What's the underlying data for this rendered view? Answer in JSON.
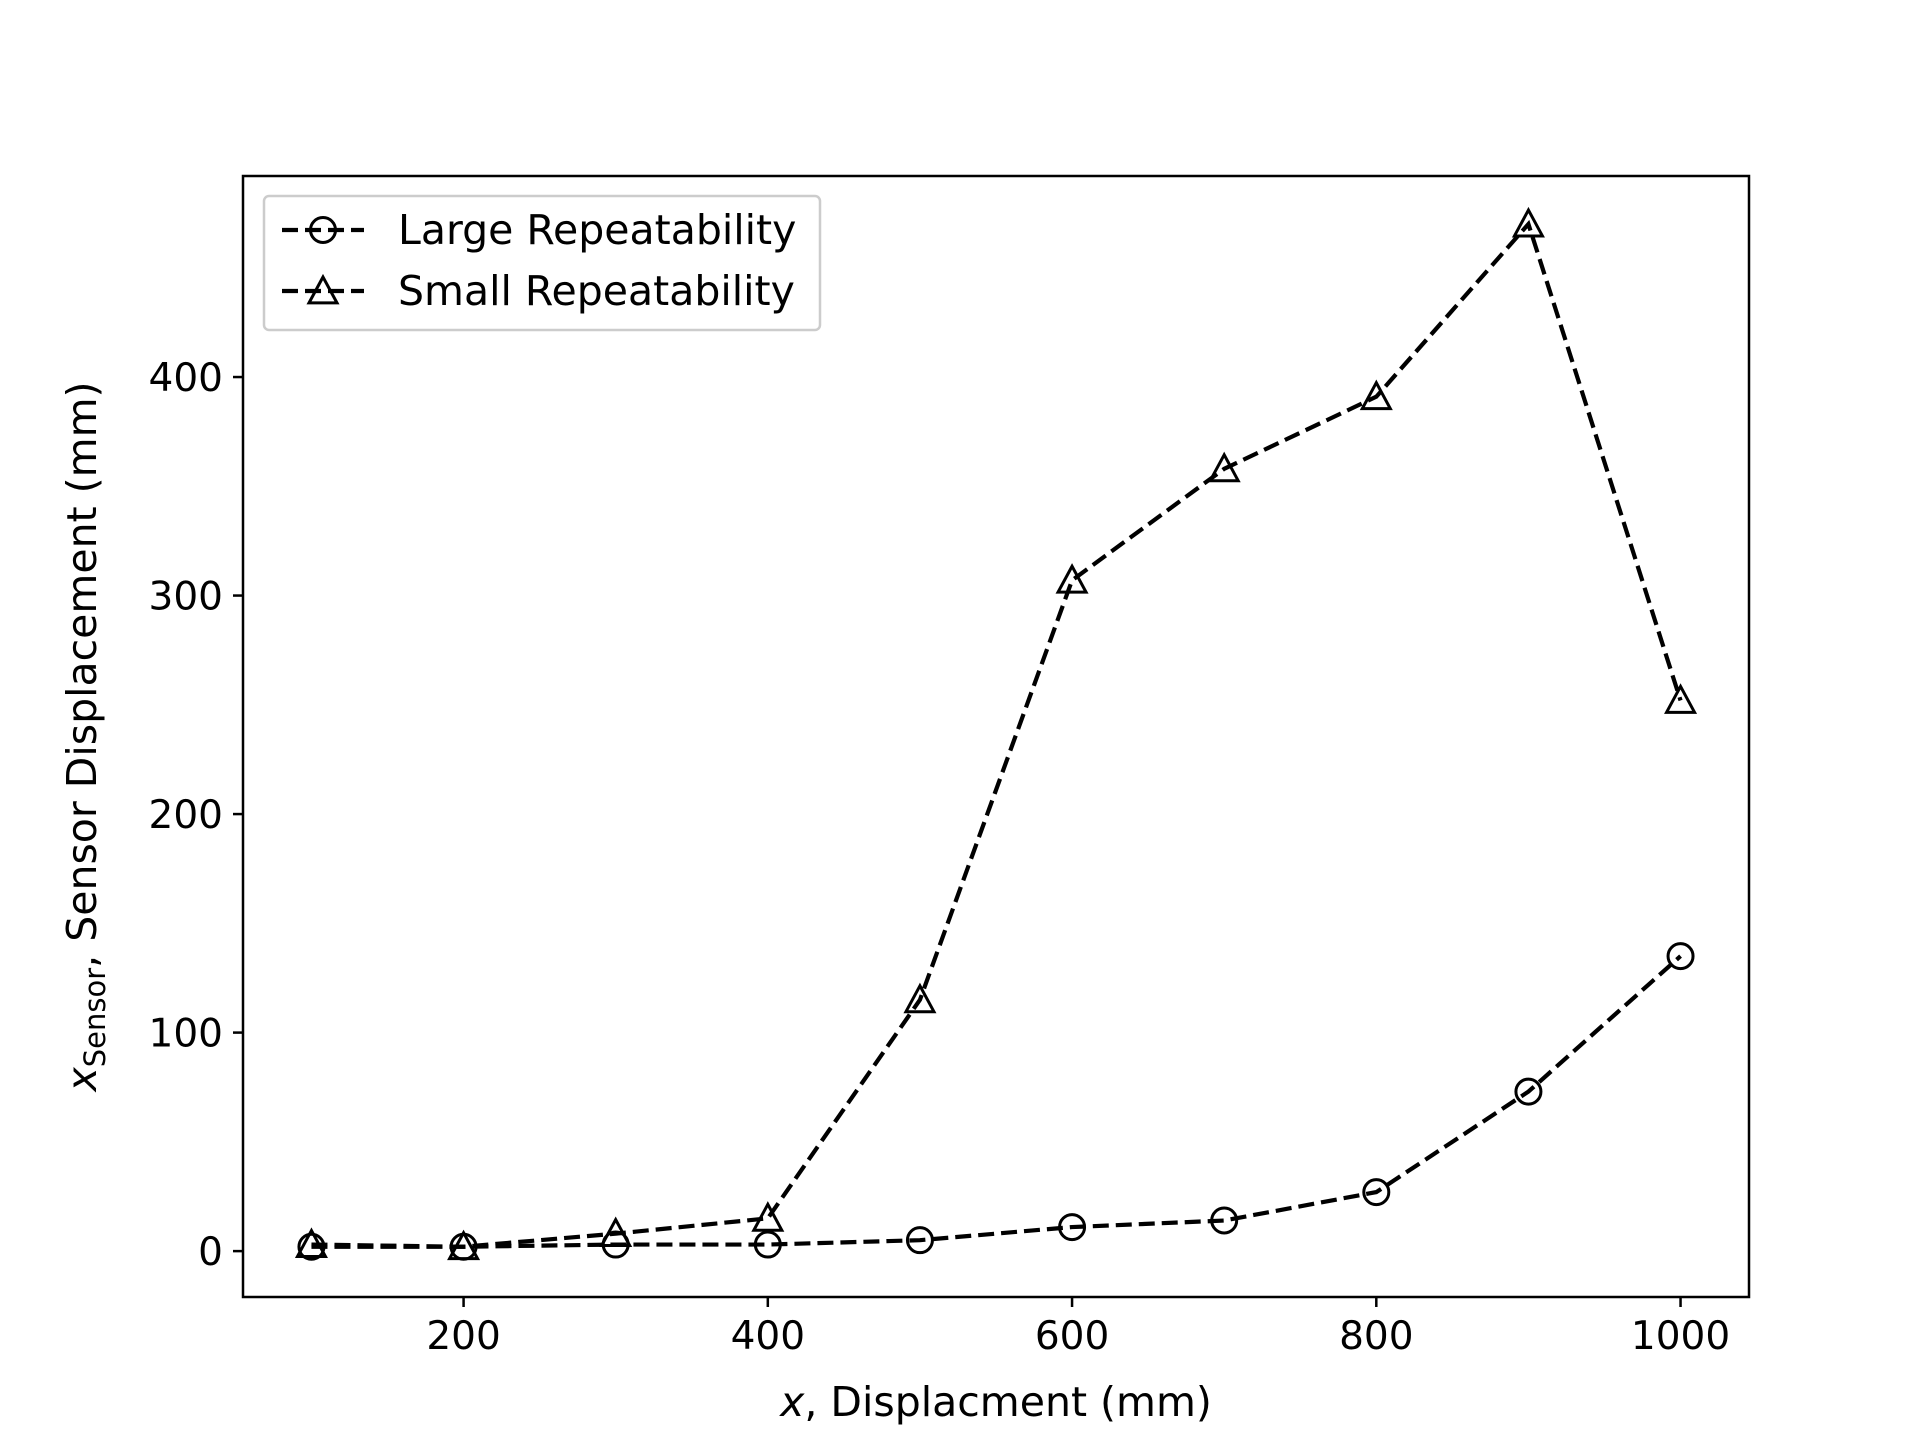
{
  "chart_data": {
    "type": "line",
    "title": "",
    "xlabel_var": "x",
    "xlabel_rest": ", Displacment (mm)",
    "ylabel_var": "x",
    "ylabel_sub": "Sensor",
    "ylabel_rest": ",  Sensor Displacement (mm)",
    "xlim": [
      55,
      1045
    ],
    "ylim": [
      -21,
      492
    ],
    "xticks": [
      200,
      400,
      600,
      800,
      1000
    ],
    "yticks": [
      0,
      100,
      200,
      300,
      400
    ],
    "grid": false,
    "legend_position": "top-left",
    "x": [
      100,
      200,
      300,
      400,
      500,
      600,
      700,
      800,
      900,
      1000
    ],
    "series": [
      {
        "name": "Large Repeatability",
        "marker": "circle",
        "line_style": "dashed",
        "color": "#000000",
        "values": [
          2,
          2,
          3,
          3,
          5,
          11,
          14,
          27,
          73,
          135
        ]
      },
      {
        "name": "Small Repeatability",
        "marker": "triangle",
        "line_style": "dashed",
        "color": "#000000",
        "values": [
          3,
          2,
          8,
          15,
          115,
          307,
          358,
          391,
          470,
          252
        ]
      }
    ]
  }
}
